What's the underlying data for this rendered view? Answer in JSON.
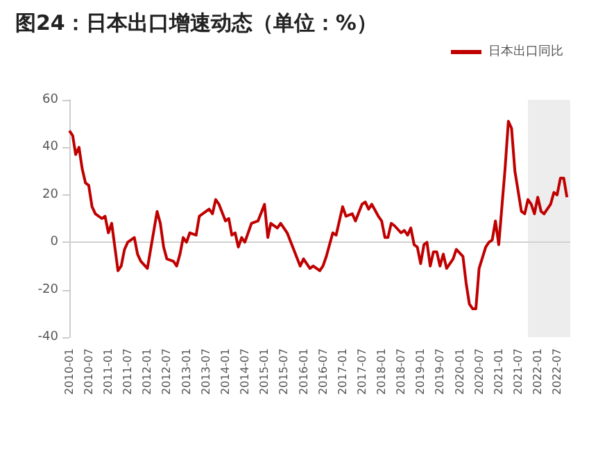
{
  "chart_data": {
    "type": "line",
    "title": "图24：日本出口增速动态（单位：%）",
    "series": [
      {
        "name": "日本出口同比",
        "color": "#c00000",
        "x": [
          "2010-01",
          "2010-02",
          "2010-03",
          "2010-04",
          "2010-05",
          "2010-06",
          "2010-07",
          "2010-08",
          "2010-09",
          "2010-11",
          "2010-12",
          "2011-01",
          "2011-02",
          "2011-04",
          "2011-05",
          "2011-06",
          "2011-07",
          "2011-09",
          "2011-10",
          "2011-11",
          "2012-01",
          "2012-04",
          "2012-05",
          "2012-06",
          "2012-07",
          "2012-09",
          "2012-10",
          "2012-11",
          "2012-12",
          "2013-01",
          "2013-02",
          "2013-04",
          "2013-05",
          "2013-06",
          "2013-08",
          "2013-09",
          "2013-10",
          "2013-11",
          "2014-01",
          "2014-02",
          "2014-03",
          "2014-04",
          "2014-05",
          "2014-06",
          "2014-07",
          "2014-09",
          "2014-11",
          "2015-01",
          "2015-02",
          "2015-03",
          "2015-04",
          "2015-05",
          "2015-06",
          "2015-08",
          "2015-10",
          "2015-12",
          "2016-01",
          "2016-03",
          "2016-04",
          "2016-06",
          "2016-07",
          "2016-08",
          "2016-10",
          "2016-11",
          "2017-01",
          "2017-02",
          "2017-04",
          "2017-05",
          "2017-07",
          "2017-08",
          "2017-09",
          "2017-10",
          "2017-12",
          "2018-01",
          "2018-02",
          "2018-03",
          "2018-04",
          "2018-05",
          "2018-07",
          "2018-08",
          "2018-09",
          "2018-10",
          "2018-11",
          "2018-12",
          "2019-01",
          "2019-02",
          "2019-03",
          "2019-04",
          "2019-05",
          "2019-06",
          "2019-07",
          "2019-08",
          "2019-09",
          "2019-11",
          "2019-12",
          "2020-02",
          "2020-03",
          "2020-04",
          "2020-05",
          "2020-06",
          "2020-07",
          "2020-09",
          "2020-10",
          "2020-11",
          "2020-12",
          "2021-01",
          "2021-03",
          "2021-04",
          "2021-05",
          "2021-06",
          "2021-08",
          "2021-09",
          "2021-10",
          "2021-11",
          "2021-12",
          "2022-01",
          "2022-02",
          "2022-03",
          "2022-05",
          "2022-06",
          "2022-07",
          "2022-08",
          "2022-09",
          "2022-10"
        ],
        "values": [
          47,
          45,
          37,
          40,
          31,
          25,
          24,
          15,
          12,
          10,
          11,
          4,
          8,
          -12,
          -10,
          -3,
          0,
          2,
          -5,
          -8,
          -11,
          13,
          8,
          -2,
          -7,
          -8,
          -10,
          -5,
          2,
          0,
          4,
          3,
          11,
          12,
          14,
          12,
          18,
          16,
          9,
          10,
          3,
          4,
          -2,
          2,
          0,
          8,
          9,
          16,
          2,
          8,
          7,
          6,
          8,
          4,
          -3,
          -10,
          -7,
          -11,
          -10,
          -12,
          -10,
          -6,
          4,
          3,
          15,
          11,
          12,
          9,
          16,
          17,
          14,
          16,
          11,
          9,
          2,
          2,
          8,
          7,
          4,
          5,
          3,
          6,
          -1,
          -2,
          -9,
          -1,
          0,
          -10,
          -4,
          -4,
          -10,
          -5,
          -11,
          -7,
          -3,
          -6,
          -17,
          -26,
          -28,
          -28,
          -11,
          -2,
          0,
          1,
          9,
          -1,
          31,
          51,
          48,
          30,
          13,
          12,
          18,
          16,
          12,
          19,
          13,
          12,
          16,
          21,
          20,
          27,
          27,
          19
        ]
      }
    ],
    "xlim": [
      "2010-01",
      "2022-11"
    ],
    "xticks": [
      "2010-01",
      "2010-07",
      "2011-01",
      "2011-07",
      "2012-01",
      "2012-07",
      "2013-01",
      "2013-07",
      "2014-01",
      "2014-07",
      "2015-01",
      "2015-07",
      "2016-01",
      "2016-07",
      "2017-01",
      "2017-07",
      "2018-01",
      "2018-07",
      "2019-01",
      "2019-07",
      "2020-01",
      "2020-07",
      "2021-01",
      "2021-07",
      "2022-01",
      "2022-07"
    ],
    "ylim": [
      -40,
      60
    ],
    "yticks": [
      -40,
      -20,
      0,
      20,
      40,
      60
    ],
    "ref_lines": [
      {
        "axis": "y",
        "value": 0,
        "color": "#d0d0d0"
      }
    ],
    "bands": [
      {
        "axis": "x",
        "from": "2021-10",
        "to": "2022-11",
        "color": "#e6e6e6"
      }
    ],
    "grid": false,
    "legend": "top right",
    "marker": "none",
    "line_style": "solid"
  }
}
